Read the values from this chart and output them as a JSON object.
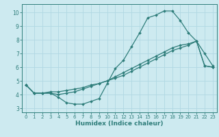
{
  "title": "",
  "xlabel": "Humidex (Indice chaleur)",
  "background_color": "#cdeaf0",
  "grid_color": "#b0d8e2",
  "line_color": "#2e7d7a",
  "xlim": [
    -0.5,
    23.5
  ],
  "ylim": [
    2.7,
    10.6
  ],
  "xticks": [
    0,
    1,
    2,
    3,
    4,
    5,
    6,
    7,
    8,
    9,
    10,
    11,
    12,
    13,
    14,
    15,
    16,
    17,
    18,
    19,
    20,
    21,
    22,
    23
  ],
  "yticks": [
    3,
    4,
    5,
    6,
    7,
    8,
    9,
    10
  ],
  "line1_x": [
    0,
    1,
    2,
    3,
    4,
    5,
    6,
    7,
    8,
    9,
    10,
    11,
    12,
    13,
    14,
    15,
    16,
    17,
    18,
    19,
    20,
    21,
    22,
    23
  ],
  "line1_y": [
    4.7,
    4.1,
    4.1,
    4.1,
    3.8,
    3.4,
    3.3,
    3.3,
    3.5,
    3.7,
    4.8,
    5.9,
    6.5,
    7.5,
    8.5,
    9.6,
    9.8,
    10.1,
    10.1,
    9.4,
    8.5,
    7.9,
    7.0,
    6.1
  ],
  "line2_x": [
    0,
    1,
    2,
    3,
    4,
    5,
    6,
    7,
    8,
    9,
    10,
    11,
    12,
    13,
    14,
    15,
    16,
    17,
    18,
    19,
    20,
    21,
    22,
    23
  ],
  "line2_y": [
    4.7,
    4.1,
    4.1,
    4.1,
    4.0,
    4.1,
    4.2,
    4.4,
    4.6,
    4.8,
    5.0,
    5.3,
    5.6,
    5.9,
    6.2,
    6.5,
    6.8,
    7.1,
    7.4,
    7.6,
    7.7,
    7.9,
    6.1,
    6.0
  ],
  "line3_x": [
    0,
    1,
    2,
    3,
    4,
    5,
    6,
    7,
    8,
    9,
    10,
    11,
    12,
    13,
    14,
    15,
    16,
    17,
    18,
    19,
    20,
    21,
    22,
    23
  ],
  "line3_y": [
    4.7,
    4.1,
    4.1,
    4.2,
    4.2,
    4.3,
    4.4,
    4.5,
    4.7,
    4.8,
    5.0,
    5.2,
    5.4,
    5.7,
    6.0,
    6.3,
    6.6,
    6.9,
    7.2,
    7.4,
    7.6,
    7.9,
    6.1,
    6.0
  ]
}
